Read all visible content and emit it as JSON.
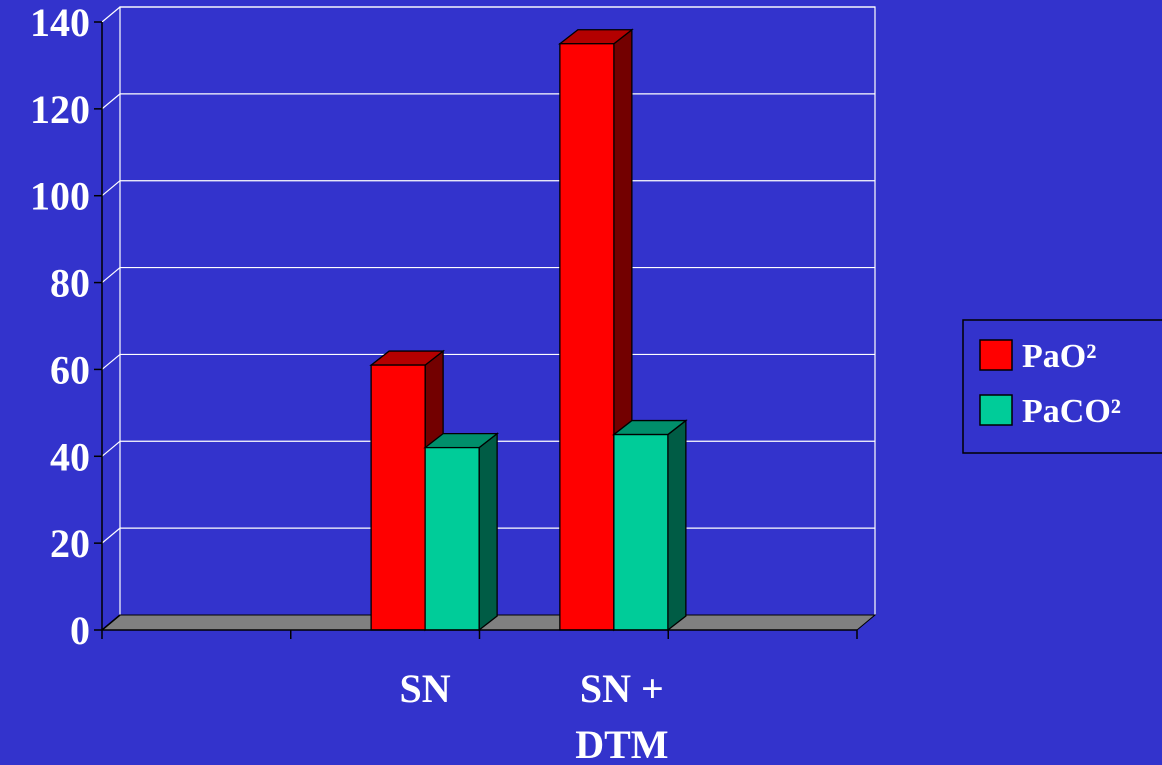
{
  "chart_data": {
    "type": "bar",
    "style": "3d-clustered-column",
    "categories": [
      "",
      "SN",
      "SN + DTM",
      ""
    ],
    "category_lines": [
      [],
      [
        "SN"
      ],
      [
        "SN +",
        "DTM"
      ],
      []
    ],
    "series": [
      {
        "name": "PaO²",
        "values": [
          null,
          61,
          135,
          null
        ],
        "color": "#ff0000"
      },
      {
        "name": "PaCO²",
        "values": [
          null,
          42,
          45,
          null
        ],
        "color": "#00cc99"
      }
    ],
    "title": "",
    "xlabel": "",
    "ylabel": "",
    "ylim": [
      0,
      140
    ],
    "yticks": [
      "0",
      "20",
      "40",
      "60",
      "80",
      "100",
      "120",
      "140"
    ],
    "grid": true,
    "legend": "right",
    "colors": {
      "background": "#3333cc",
      "floor": "#808080",
      "axis": "#000000",
      "gridline": "#ffffff"
    }
  }
}
